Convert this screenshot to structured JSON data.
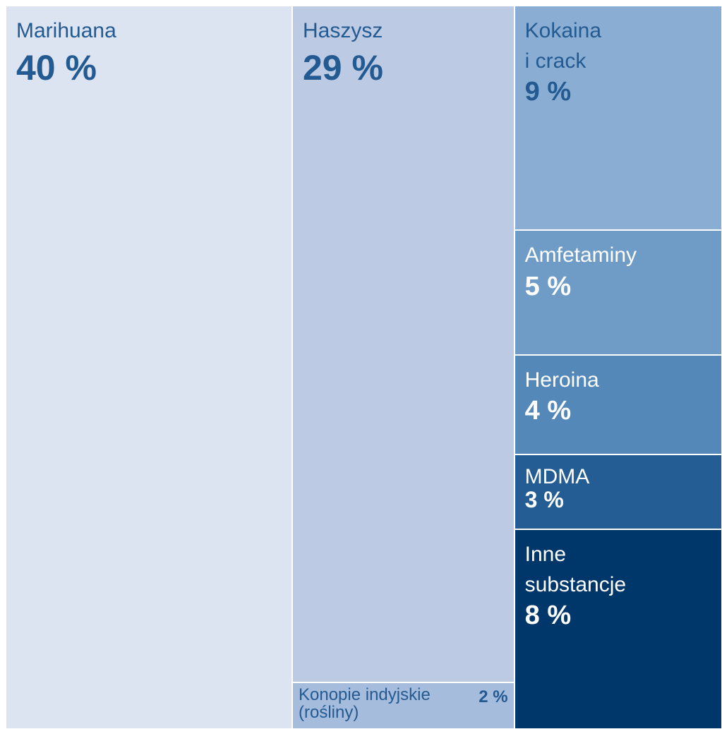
{
  "chart_data": {
    "type": "treemap",
    "categories": [
      "Marihuana",
      "Haszysz",
      "Konopie indyjskie\n(rośliny)",
      "Kokaina\ni crack",
      "Amfetaminy",
      "Heroina",
      "MDMA",
      "Inne\nsubstancje"
    ],
    "values": [
      40,
      29,
      2,
      9,
      5,
      4,
      3,
      8
    ],
    "value_labels": [
      "40 %",
      "29 %",
      "2 %",
      "9 %",
      "5 %",
      "4 %",
      "3 %",
      "8 %"
    ],
    "colors": [
      "#dce4f2",
      "#bccbe3",
      "#a6bcdc",
      "#8aaed3",
      "#6f9bc7",
      "#5388b9",
      "#245d94",
      "#00376b"
    ]
  }
}
